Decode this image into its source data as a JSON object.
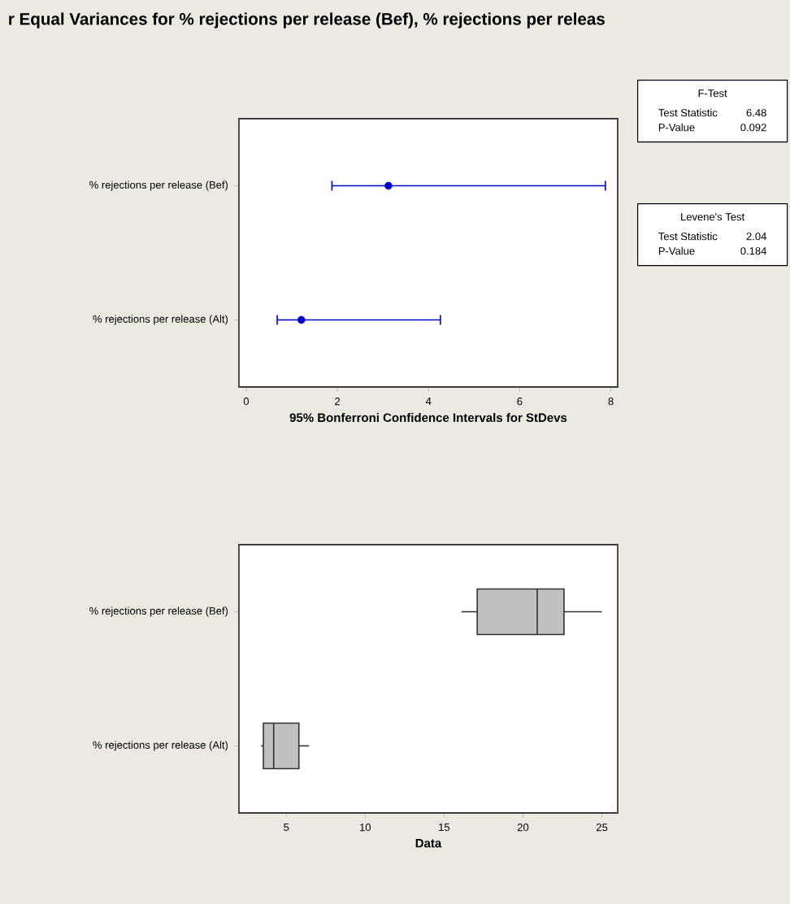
{
  "chart_data": [
    {
      "type": "scatter",
      "title": "r Equal Variances for % rejections per release (Bef), % rejections per releas",
      "orientation": "horizontal",
      "categories": [
        "% rejections per release (Bef)",
        "% rejections per release (Alt)"
      ],
      "values": [
        3.12,
        1.21
      ],
      "errors": [
        [
          1.88,
          7.88
        ],
        [
          0.68,
          4.26
        ]
      ],
      "color": "#0000cc",
      "marker": "circle",
      "xlim": [
        -0.16,
        8.15
      ],
      "xticks": [
        0,
        2,
        4,
        6,
        8
      ],
      "xlabel": "95% Bonferroni Confidence Intervals for StDevs"
    },
    {
      "type": "box",
      "orientation": "horizontal",
      "categories": [
        "% rejections per release (Bef)",
        "% rejections per release (Alt)"
      ],
      "boxes": [
        {
          "low": 16.1,
          "q1": 17.1,
          "median": 20.9,
          "q3": 22.6,
          "high": 25.0
        },
        {
          "low": 3.4,
          "q1": 3.55,
          "median": 4.2,
          "q3": 5.8,
          "high": 6.45
        }
      ],
      "color": "#c0c0c0",
      "xlim": [
        2.0,
        26.0
      ],
      "xticks": [
        5,
        10,
        15,
        20,
        25
      ],
      "xlabel": "Data"
    },
    {
      "type": "other",
      "title": "F-Test",
      "annotations": [
        "Test Statistic",
        "6.48",
        "P-Value",
        "0.092"
      ]
    },
    {
      "type": "other",
      "title": "Levene's Test",
      "annotations": [
        "Test Statistic",
        "2.04",
        "P-Value",
        "0.184"
      ]
    }
  ]
}
